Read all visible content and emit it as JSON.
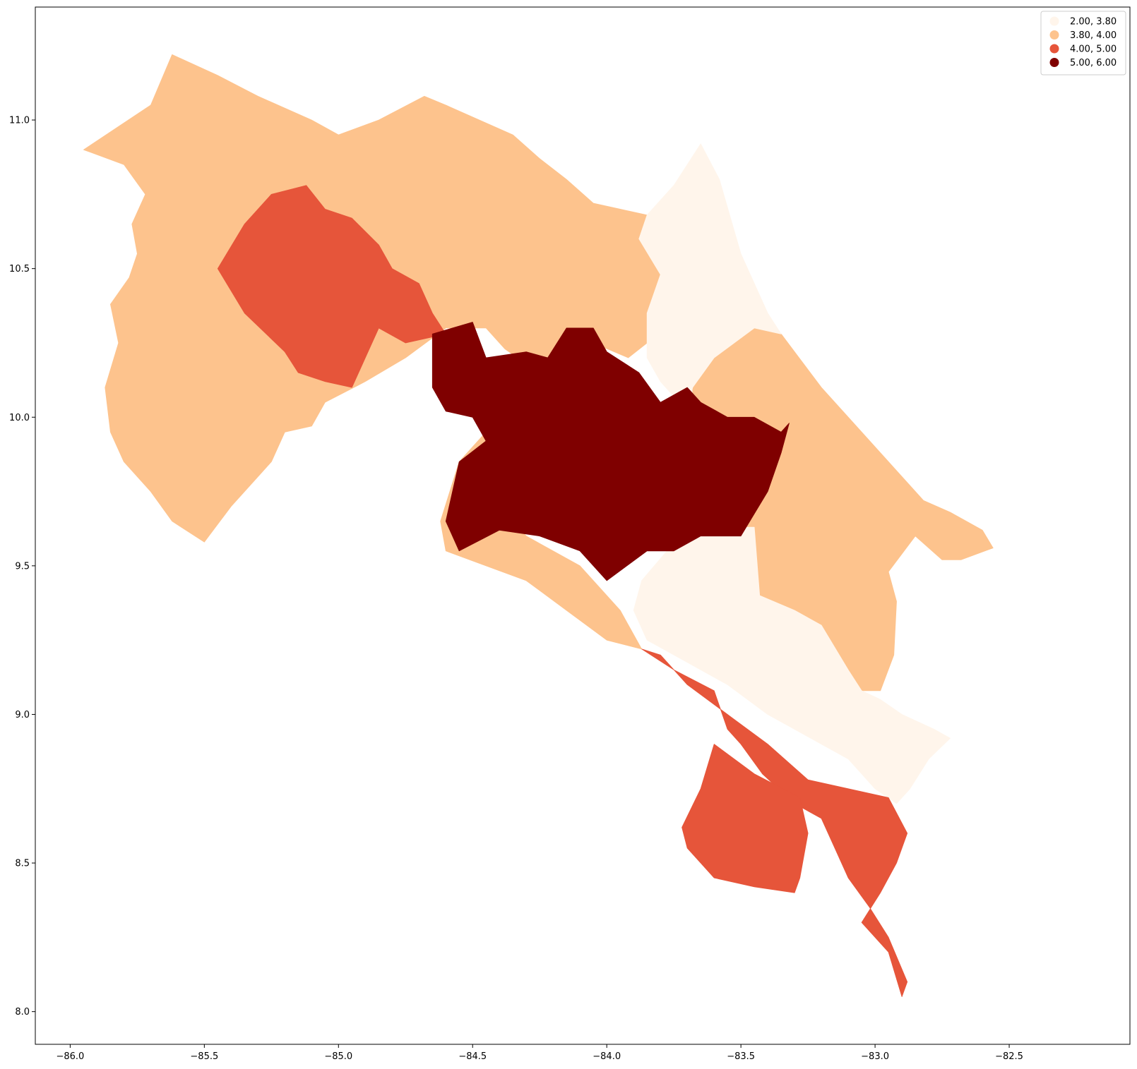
{
  "chart_data": {
    "type": "choropleth",
    "title": "",
    "xlabel": "",
    "ylabel": "",
    "xlim": [
      -86.13,
      -82.05
    ],
    "ylim": [
      7.89,
      11.38
    ],
    "x_ticks": [
      "−86.0",
      "−85.5",
      "−85.0",
      "−84.5",
      "−84.0",
      "−83.5",
      "−83.0",
      "−82.5"
    ],
    "x_tick_values": [
      -86.0,
      -85.5,
      -85.0,
      -84.5,
      -84.0,
      -83.5,
      -83.0,
      -82.5
    ],
    "y_ticks": [
      "8.0",
      "8.5",
      "9.0",
      "9.5",
      "10.0",
      "10.5",
      "11.0"
    ],
    "y_tick_values": [
      8.0,
      8.5,
      9.0,
      9.5,
      10.0,
      10.5,
      11.0
    ],
    "legend_position": "upper right",
    "legend": [
      {
        "label": "2.00, 3.80",
        "color": "#fff5eb"
      },
      {
        "label": "3.80, 4.00",
        "color": "#fdc38d"
      },
      {
        "label": "4.00, 5.00",
        "color": "#e6553a"
      },
      {
        "label": "5.00, 6.00",
        "color": "#7f0000"
      }
    ],
    "regions": [
      {
        "class": 1,
        "color": "#fdc38d",
        "lonlat": [
          [
            -85.95,
            10.9
          ],
          [
            -85.7,
            11.05
          ],
          [
            -85.62,
            11.22
          ],
          [
            -85.45,
            11.15
          ],
          [
            -85.3,
            11.08
          ],
          [
            -85.1,
            11.0
          ],
          [
            -85.0,
            10.95
          ],
          [
            -84.85,
            11.0
          ],
          [
            -84.68,
            11.08
          ],
          [
            -84.6,
            11.05
          ],
          [
            -84.35,
            10.95
          ],
          [
            -84.25,
            10.87
          ],
          [
            -84.15,
            10.8
          ],
          [
            -84.05,
            10.72
          ],
          [
            -83.95,
            10.7
          ],
          [
            -83.85,
            10.68
          ],
          [
            -83.88,
            10.6
          ],
          [
            -83.8,
            10.48
          ],
          [
            -83.85,
            10.35
          ],
          [
            -83.85,
            10.25
          ],
          [
            -83.92,
            10.2
          ],
          [
            -84.05,
            10.25
          ],
          [
            -84.12,
            10.27
          ],
          [
            -84.22,
            10.2
          ],
          [
            -84.3,
            10.18
          ],
          [
            -84.38,
            10.23
          ],
          [
            -84.45,
            10.3
          ],
          [
            -84.6,
            10.3
          ],
          [
            -84.75,
            10.2
          ],
          [
            -84.9,
            10.12
          ],
          [
            -85.05,
            10.05
          ],
          [
            -85.1,
            9.97
          ],
          [
            -85.2,
            9.95
          ],
          [
            -85.25,
            9.85
          ],
          [
            -85.3,
            9.8
          ],
          [
            -85.4,
            9.7
          ],
          [
            -85.5,
            9.58
          ],
          [
            -85.62,
            9.65
          ],
          [
            -85.7,
            9.75
          ],
          [
            -85.8,
            9.85
          ],
          [
            -85.85,
            9.95
          ],
          [
            -85.87,
            10.1
          ],
          [
            -85.82,
            10.25
          ],
          [
            -85.85,
            10.38
          ],
          [
            -85.78,
            10.47
          ],
          [
            -85.75,
            10.55
          ],
          [
            -85.77,
            10.65
          ],
          [
            -85.72,
            10.75
          ],
          [
            -85.8,
            10.85
          ]
        ]
      },
      {
        "class": 1,
        "color": "#fdc38d",
        "lonlat": [
          [
            -84.62,
            9.65
          ],
          [
            -84.55,
            9.85
          ],
          [
            -84.45,
            9.95
          ],
          [
            -84.3,
            10.0
          ],
          [
            -84.3,
            10.2
          ],
          [
            -84.15,
            10.2
          ],
          [
            -84.05,
            10.3
          ],
          [
            -84.0,
            10.22
          ],
          [
            -84.12,
            10.15
          ],
          [
            -84.3,
            10.05
          ],
          [
            -84.45,
            9.75
          ],
          [
            -84.3,
            9.6
          ],
          [
            -84.1,
            9.5
          ],
          [
            -83.95,
            9.35
          ],
          [
            -83.87,
            9.22
          ],
          [
            -84.0,
            9.25
          ],
          [
            -84.15,
            9.35
          ],
          [
            -84.3,
            9.45
          ],
          [
            -84.45,
            9.5
          ],
          [
            -84.6,
            9.55
          ]
        ]
      },
      {
        "class": 1,
        "color": "#fdc38d",
        "lonlat": [
          [
            -83.6,
            10.2
          ],
          [
            -83.45,
            10.3
          ],
          [
            -83.35,
            10.28
          ],
          [
            -83.2,
            10.1
          ],
          [
            -83.05,
            9.95
          ],
          [
            -82.95,
            9.85
          ],
          [
            -82.82,
            9.72
          ],
          [
            -82.72,
            9.68
          ],
          [
            -82.6,
            9.62
          ],
          [
            -82.56,
            9.56
          ],
          [
            -82.68,
            9.52
          ],
          [
            -82.75,
            9.52
          ],
          [
            -82.85,
            9.6
          ],
          [
            -82.95,
            9.48
          ],
          [
            -82.92,
            9.38
          ],
          [
            -82.93,
            9.2
          ],
          [
            -82.98,
            9.08
          ],
          [
            -83.05,
            9.08
          ],
          [
            -83.1,
            9.15
          ],
          [
            -83.2,
            9.3
          ],
          [
            -83.3,
            9.35
          ],
          [
            -83.4,
            9.33
          ],
          [
            -83.43,
            9.4
          ],
          [
            -83.45,
            9.63
          ],
          [
            -83.55,
            9.63
          ],
          [
            -83.6,
            9.95
          ],
          [
            -83.68,
            10.0
          ],
          [
            -83.68,
            10.1
          ]
        ]
      },
      {
        "class": 0,
        "color": "#fff5eb",
        "lonlat": [
          [
            -83.85,
            10.68
          ],
          [
            -83.75,
            10.78
          ],
          [
            -83.65,
            10.92
          ],
          [
            -83.58,
            10.8
          ],
          [
            -83.5,
            10.55
          ],
          [
            -83.4,
            10.35
          ],
          [
            -83.35,
            10.28
          ],
          [
            -83.45,
            10.3
          ],
          [
            -83.6,
            10.2
          ],
          [
            -83.68,
            10.1
          ],
          [
            -83.7,
            10.02
          ],
          [
            -83.8,
            10.12
          ],
          [
            -83.85,
            10.2
          ],
          [
            -83.85,
            10.35
          ],
          [
            -83.8,
            10.48
          ],
          [
            -83.88,
            10.6
          ]
        ]
      },
      {
        "class": 0,
        "color": "#fff5eb",
        "lonlat": [
          [
            -83.87,
            9.45
          ],
          [
            -83.7,
            9.63
          ],
          [
            -83.45,
            9.63
          ],
          [
            -83.43,
            9.4
          ],
          [
            -83.3,
            9.35
          ],
          [
            -83.2,
            9.3
          ],
          [
            -83.1,
            9.15
          ],
          [
            -83.05,
            9.08
          ],
          [
            -82.98,
            9.05
          ],
          [
            -82.9,
            9.0
          ],
          [
            -82.78,
            8.95
          ],
          [
            -82.72,
            8.92
          ],
          [
            -82.8,
            8.85
          ],
          [
            -82.87,
            8.75
          ],
          [
            -82.92,
            8.7
          ],
          [
            -83.0,
            8.75
          ],
          [
            -83.1,
            8.85
          ],
          [
            -83.2,
            8.9
          ],
          [
            -83.3,
            8.95
          ],
          [
            -83.4,
            9.0
          ],
          [
            -83.55,
            9.1
          ],
          [
            -83.65,
            9.15
          ],
          [
            -83.75,
            9.2
          ],
          [
            -83.85,
            9.25
          ],
          [
            -83.9,
            9.35
          ]
        ]
      },
      {
        "class": 2,
        "color": "#e6553a",
        "lonlat": [
          [
            -85.35,
            10.65
          ],
          [
            -85.25,
            10.75
          ],
          [
            -85.12,
            10.78
          ],
          [
            -85.05,
            10.7
          ],
          [
            -84.95,
            10.67
          ],
          [
            -84.85,
            10.58
          ],
          [
            -84.8,
            10.5
          ],
          [
            -84.7,
            10.45
          ],
          [
            -84.65,
            10.35
          ],
          [
            -84.6,
            10.28
          ],
          [
            -84.75,
            10.25
          ],
          [
            -84.85,
            10.3
          ],
          [
            -84.9,
            10.2
          ],
          [
            -84.95,
            10.1
          ],
          [
            -85.05,
            10.12
          ],
          [
            -85.15,
            10.15
          ],
          [
            -85.2,
            10.22
          ],
          [
            -85.35,
            10.35
          ],
          [
            -85.45,
            10.5
          ]
        ]
      },
      {
        "class": 2,
        "color": "#e6553a",
        "lonlat": [
          [
            -83.87,
            9.22
          ],
          [
            -83.75,
            9.15
          ],
          [
            -83.6,
            9.08
          ],
          [
            -83.55,
            8.95
          ],
          [
            -83.5,
            8.9
          ],
          [
            -83.42,
            8.8
          ],
          [
            -83.3,
            8.7
          ],
          [
            -83.2,
            8.65
          ],
          [
            -83.15,
            8.55
          ],
          [
            -83.1,
            8.45
          ],
          [
            -83.02,
            8.35
          ],
          [
            -82.95,
            8.25
          ],
          [
            -82.88,
            8.1
          ],
          [
            -82.9,
            8.05
          ],
          [
            -82.95,
            8.2
          ],
          [
            -83.05,
            8.3
          ],
          [
            -82.98,
            8.4
          ],
          [
            -82.92,
            8.5
          ],
          [
            -82.88,
            8.6
          ],
          [
            -82.95,
            8.72
          ],
          [
            -83.1,
            8.75
          ],
          [
            -83.25,
            8.78
          ],
          [
            -83.4,
            8.9
          ],
          [
            -83.55,
            9.0
          ],
          [
            -83.7,
            9.1
          ],
          [
            -83.8,
            9.2
          ]
        ]
      },
      {
        "class": 2,
        "color": "#e6553a",
        "lonlat": [
          [
            -83.6,
            8.9
          ],
          [
            -83.45,
            8.8
          ],
          [
            -83.28,
            8.72
          ],
          [
            -83.25,
            8.6
          ],
          [
            -83.28,
            8.45
          ],
          [
            -83.3,
            8.4
          ],
          [
            -83.45,
            8.42
          ],
          [
            -83.6,
            8.45
          ],
          [
            -83.7,
            8.55
          ],
          [
            -83.72,
            8.62
          ],
          [
            -83.65,
            8.75
          ]
        ]
      },
      {
        "class": 3,
        "color": "#7f0000",
        "lonlat": [
          [
            -84.65,
            10.28
          ],
          [
            -84.5,
            10.32
          ],
          [
            -84.45,
            10.2
          ],
          [
            -84.3,
            10.22
          ],
          [
            -84.22,
            10.2
          ],
          [
            -84.15,
            10.3
          ],
          [
            -84.05,
            10.3
          ],
          [
            -84.0,
            10.22
          ],
          [
            -83.88,
            10.15
          ],
          [
            -83.8,
            10.05
          ],
          [
            -83.7,
            10.1
          ],
          [
            -83.65,
            10.05
          ],
          [
            -83.55,
            10.0
          ],
          [
            -83.45,
            10.0
          ],
          [
            -83.35,
            9.95
          ],
          [
            -83.32,
            9.98
          ],
          [
            -83.35,
            9.88
          ],
          [
            -83.4,
            9.75
          ],
          [
            -83.5,
            9.6
          ],
          [
            -83.65,
            9.6
          ],
          [
            -83.75,
            9.55
          ],
          [
            -83.85,
            9.55
          ],
          [
            -84.0,
            9.45
          ],
          [
            -84.1,
            9.55
          ],
          [
            -84.25,
            9.6
          ],
          [
            -84.4,
            9.62
          ],
          [
            -84.55,
            9.55
          ],
          [
            -84.6,
            9.65
          ],
          [
            -84.55,
            9.85
          ],
          [
            -84.45,
            9.92
          ],
          [
            -84.5,
            10.0
          ],
          [
            -84.6,
            10.02
          ],
          [
            -84.65,
            10.1
          ]
        ]
      }
    ]
  }
}
